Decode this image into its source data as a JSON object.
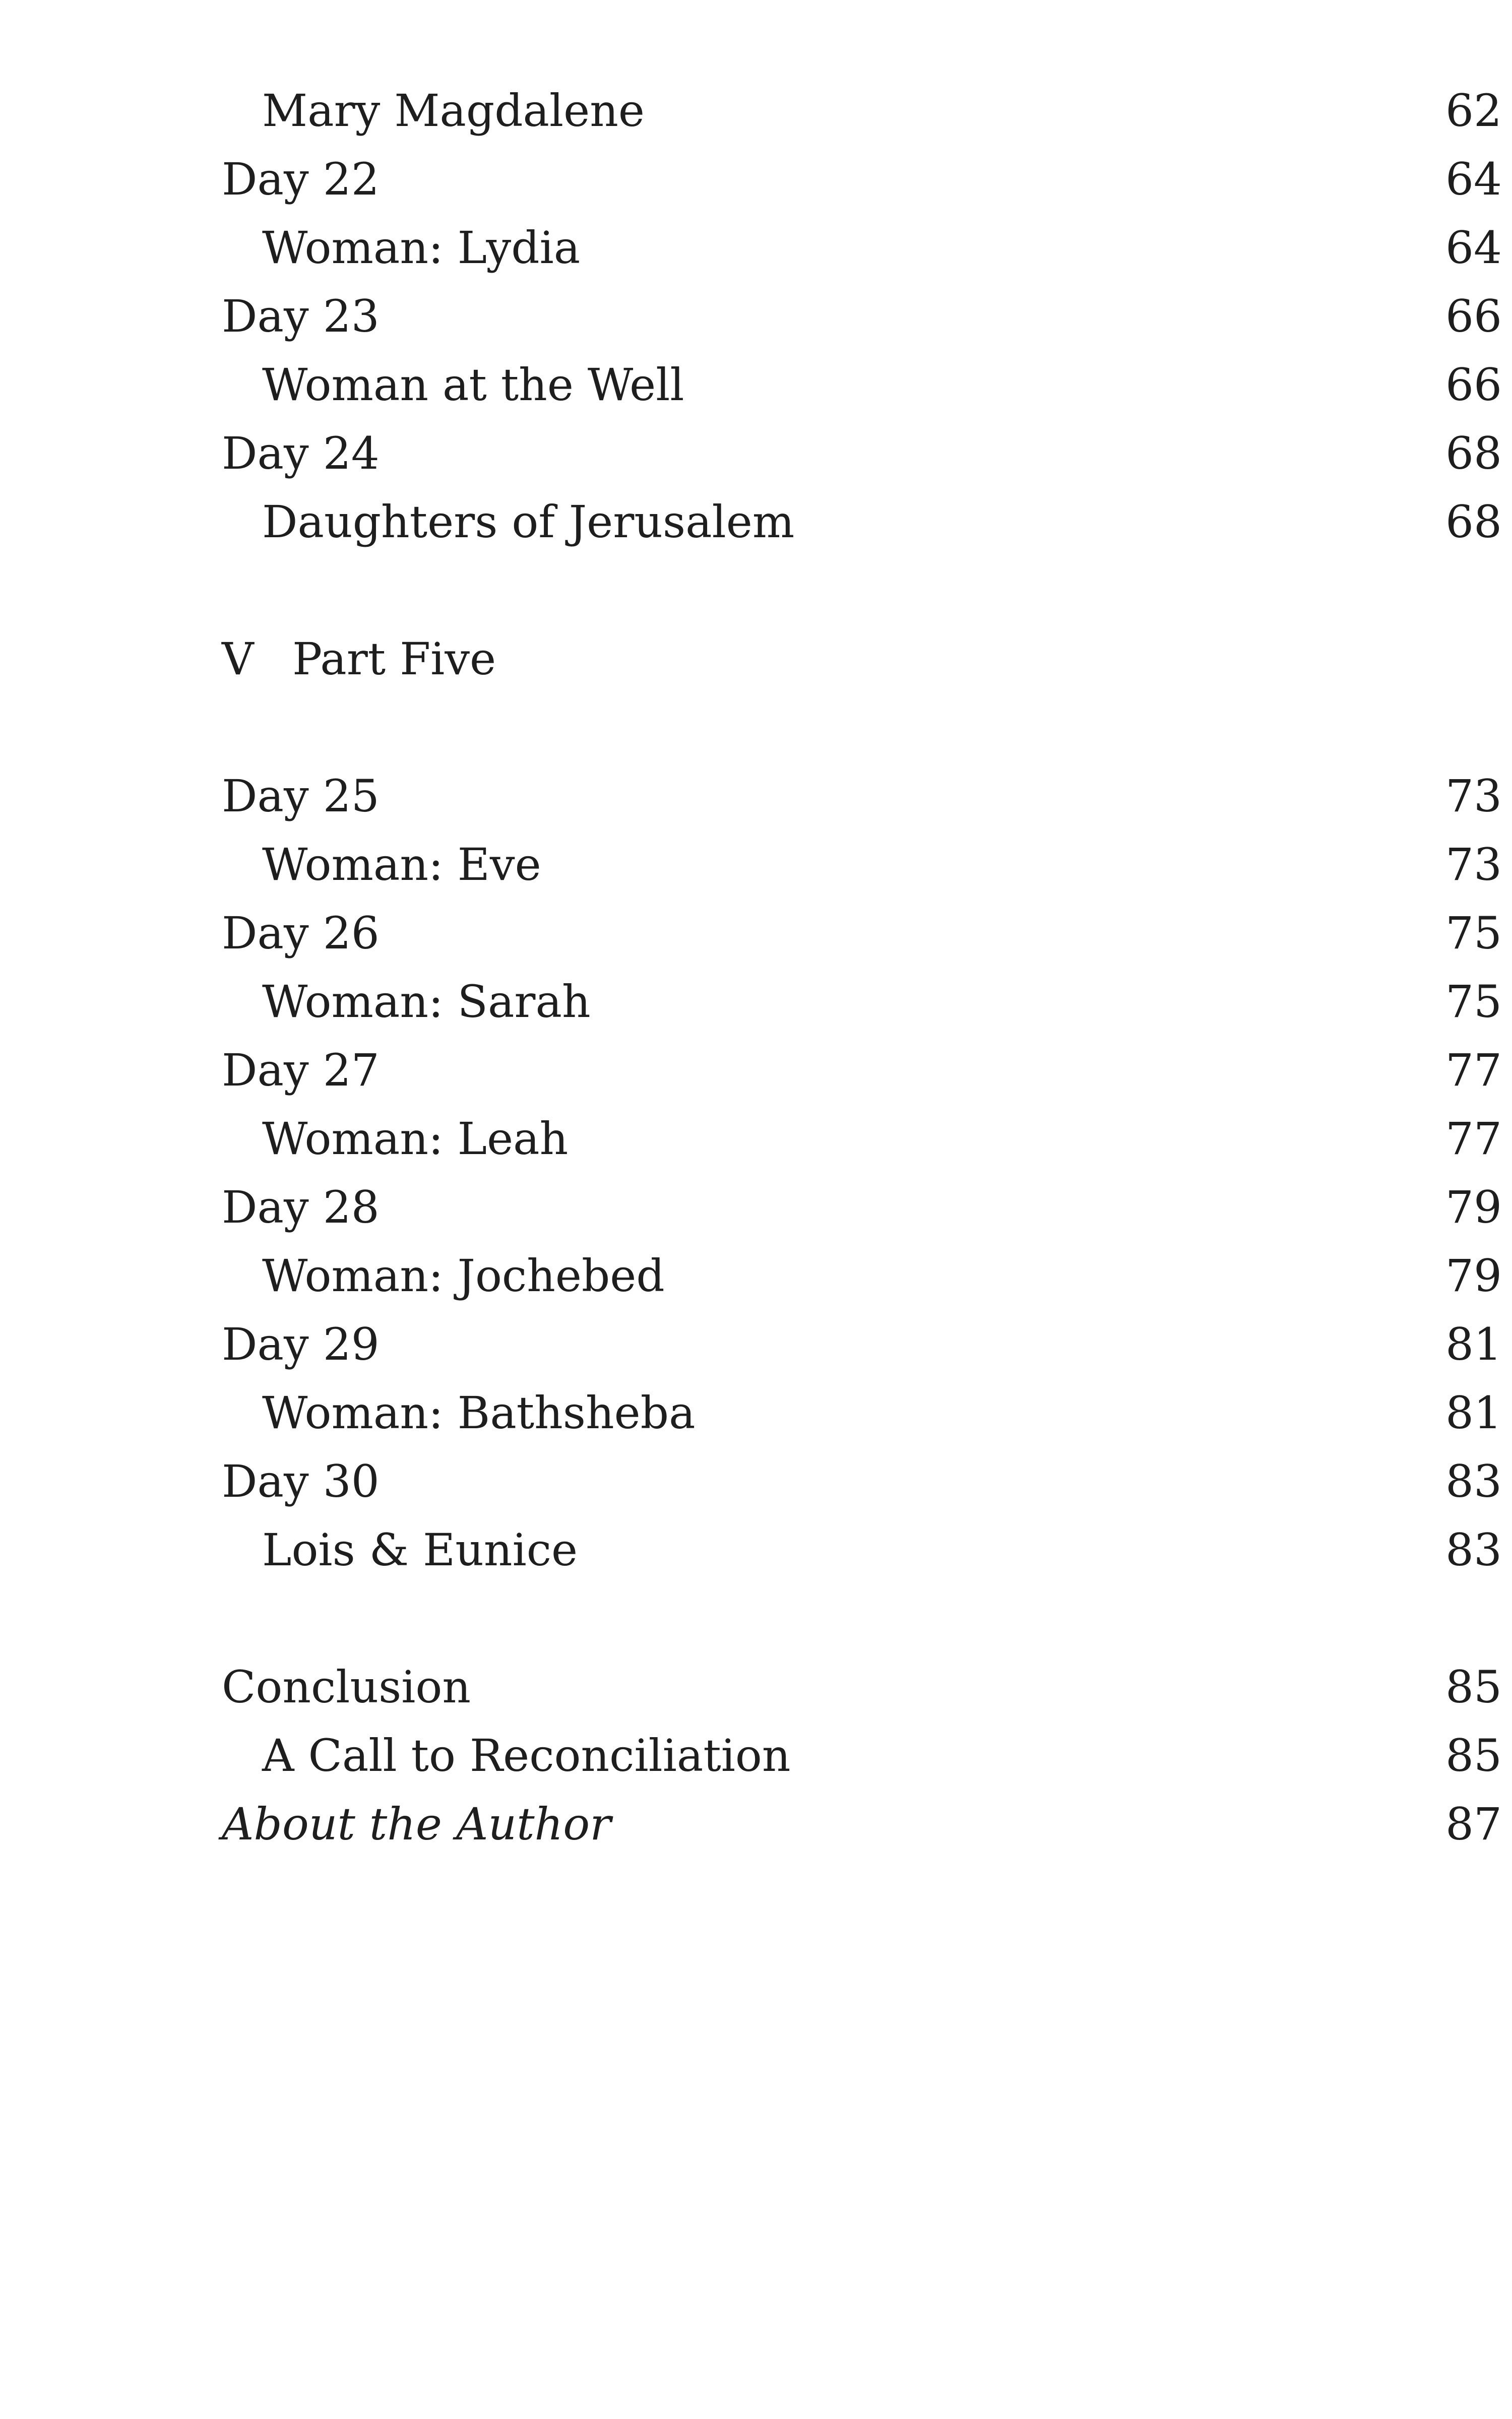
{
  "toc": {
    "block1": [
      {
        "label": "Mary Magdalene",
        "page": "62"
      },
      {
        "label": "Day 22",
        "page": "64"
      },
      {
        "label": "Woman:  Lydia",
        "page": "64"
      },
      {
        "label": "Day 23",
        "page": "66"
      },
      {
        "label": "Woman at the Well",
        "page": "66"
      },
      {
        "label": "Day 24",
        "page": "68"
      },
      {
        "label": "Daughters of Jerusalem",
        "page": "68"
      }
    ],
    "part_five": {
      "number": "V",
      "title": "Part Five"
    },
    "block2": [
      {
        "label": "Day 25",
        "page": "73"
      },
      {
        "label": "Woman:  Eve",
        "page": "73"
      },
      {
        "label": "Day 26",
        "page": "75"
      },
      {
        "label": "Woman:  Sarah",
        "page": "75"
      },
      {
        "label": "Day 27",
        "page": "77"
      },
      {
        "label": "Woman:  Leah",
        "page": "77"
      },
      {
        "label": "Day 28",
        "page": "79"
      },
      {
        "label": "Woman:  Jochebed",
        "page": "79"
      },
      {
        "label": "Day 29",
        "page": "81"
      },
      {
        "label": "Woman:  Bathsheba",
        "page": "81"
      },
      {
        "label": "Day 30",
        "page": "83"
      },
      {
        "label": "Lois & Eunice",
        "page": "83"
      }
    ],
    "block3": [
      {
        "label": "Conclusion",
        "page": "85"
      },
      {
        "label": "A Call to Reconciliation",
        "page": "85"
      },
      {
        "label": "About the Author",
        "page": "87"
      }
    ]
  }
}
